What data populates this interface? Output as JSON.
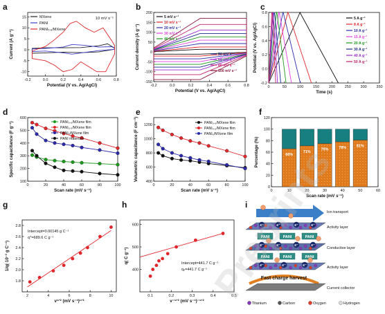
{
  "figure": {
    "watermark": "Preprints",
    "panels": {
      "a": "a",
      "b": "b",
      "c": "c",
      "d": "d",
      "e": "e",
      "f": "f",
      "g": "g",
      "h": "h",
      "i": "i"
    }
  },
  "chart_data": [
    {
      "panel": "a",
      "type": "line",
      "xlabel": "Potential (V vs. Ag/AgCl)",
      "ylabel": "Current (A g⁻¹)",
      "annotation": "10 mV s⁻¹",
      "xlim": [
        -0.2,
        0.8
      ],
      "ylim": [
        -12,
        17
      ],
      "xticks": [
        "-0.2",
        "0.0",
        "0.2",
        "0.4",
        "0.6",
        "0.8"
      ],
      "yticks": [
        "-10",
        "-5",
        "0",
        "5",
        "10",
        "15"
      ],
      "legend": [
        "MXene",
        "PANI",
        "PANI₅.₆/MXene"
      ],
      "colors": [
        "#222222",
        "#3a3acb",
        "#e0262a"
      ],
      "series": [
        {
          "name": "MXene",
          "color": "#222222",
          "upper": [
            [
              -0.15,
              0.6
            ],
            [
              0,
              0.9
            ],
            [
              0.2,
              0.9
            ],
            [
              0.4,
              1.0
            ],
            [
              0.6,
              1.8
            ],
            [
              0.7,
              2.7
            ],
            [
              0.78,
              0.8
            ]
          ],
          "lower": [
            [
              -0.15,
              -1.6
            ],
            [
              0,
              -1.4
            ],
            [
              0.2,
              -1.1
            ],
            [
              0.4,
              -1.3
            ],
            [
              0.6,
              -1.0
            ],
            [
              0.78,
              0.2
            ]
          ]
        },
        {
          "name": "PANI",
          "color": "#3a3acb",
          "upper": [
            [
              -0.15,
              0.4
            ],
            [
              0,
              0.6
            ],
            [
              0.2,
              1.2
            ],
            [
              0.3,
              2.4
            ],
            [
              0.45,
              2.0
            ],
            [
              0.6,
              1.2
            ],
            [
              0.75,
              1.4
            ],
            [
              0.78,
              0.6
            ]
          ],
          "lower": [
            [
              -0.15,
              -0.8
            ],
            [
              0,
              -0.6
            ],
            [
              0.2,
              -1.4
            ],
            [
              0.3,
              -2.0
            ],
            [
              0.45,
              -1.2
            ],
            [
              0.6,
              -0.4
            ],
            [
              0.78,
              0.2
            ]
          ]
        },
        {
          "name": "PANI₅.₆/MXene",
          "color": "#e0262a",
          "upper": [
            [
              -0.15,
              -0.5
            ],
            [
              0,
              1.5
            ],
            [
              0.1,
              4.5
            ],
            [
              0.2,
              8.0
            ],
            [
              0.28,
              12.0
            ],
            [
              0.35,
              13.0
            ],
            [
              0.45,
              10.0
            ],
            [
              0.55,
              8.0
            ],
            [
              0.65,
              10.0
            ],
            [
              0.75,
              4.0
            ],
            [
              0.78,
              2.0
            ]
          ],
          "lower": [
            [
              -0.15,
              -4.0
            ],
            [
              0,
              -5.0
            ],
            [
              0.1,
              -7.0
            ],
            [
              0.2,
              -10.0
            ],
            [
              0.3,
              -9.0
            ],
            [
              0.4,
              -5.5
            ],
            [
              0.5,
              -8.0
            ],
            [
              0.58,
              -10.0
            ],
            [
              0.68,
              -10.0
            ],
            [
              0.78,
              -2.0
            ]
          ]
        }
      ]
    },
    {
      "panel": "b",
      "type": "line",
      "xlabel": "Potential (V vs. Ag/AgCl)",
      "ylabel": "Current density (A g⁻¹)",
      "xlim": [
        -0.2,
        0.8
      ],
      "ylim": [
        -150,
        200
      ],
      "xticks": [
        "-0.2",
        "0.0",
        "0.2",
        "0.4",
        "0.6",
        "0.8"
      ],
      "yticks": [
        "-150",
        "-100",
        "-50",
        "0",
        "50",
        "100",
        "150",
        "200"
      ],
      "legend": [
        "5 mV s⁻¹",
        "10 mV s⁻¹",
        "20 mV s⁻¹",
        "30 mV s⁻¹",
        "40 mV s⁻¹",
        "50 mV s⁻¹",
        "60 mV s⁻¹",
        "80 mV s⁻¹",
        "100 mV s⁻¹"
      ],
      "colors": [
        "#111111",
        "#e0262a",
        "#2a2aa8",
        "#e040e0",
        "#1a9a1a",
        "#1a2a8a",
        "#9a2ad0",
        "#c0206a",
        "#8a1a3a"
      ],
      "scales": [
        0.08,
        0.15,
        0.25,
        0.35,
        0.45,
        0.55,
        0.65,
        0.82,
        1.0
      ]
    },
    {
      "panel": "c",
      "type": "line",
      "xlabel": "Time (s)",
      "ylabel": "Potential (V vs. Ag/AgCl)",
      "xlim": [
        0,
        350
      ],
      "ylim": [
        -0.2,
        0.8
      ],
      "xticks": [
        "0",
        "50",
        "100",
        "150",
        "200",
        "250",
        "300",
        "350"
      ],
      "yticks": [
        "-0.2",
        "0.0",
        "0.2",
        "0.4",
        "0.6",
        "0.8"
      ],
      "legend": [
        "5 A g⁻¹",
        "8 A g⁻¹",
        "10 A g⁻¹",
        "15 A g⁻¹",
        "20 A g⁻¹",
        "30 A g⁻¹",
        "40 A g⁻¹",
        "50 A g⁻¹"
      ],
      "colors": [
        "#111111",
        "#e0262a",
        "#2a2aa8",
        "#e040e0",
        "#1a9a1a",
        "#1a2a8a",
        "#9a2ad0",
        "#c0206a"
      ],
      "periods": [
        220,
        135,
        100,
        72,
        55,
        38,
        28,
        22
      ]
    },
    {
      "panel": "d",
      "type": "scatter",
      "xlabel": "Scan rate (mV s⁻¹)",
      "ylabel": "Specific capacitance (F g⁻¹)",
      "xlim": [
        0,
        100
      ],
      "ylim": [
        100,
        600
      ],
      "xticks": [
        "0",
        "20",
        "40",
        "60",
        "80",
        "100"
      ],
      "yticks": [
        "100",
        "200",
        "300",
        "400",
        "500",
        "600"
      ],
      "x": [
        5,
        10,
        20,
        30,
        40,
        50,
        60,
        80,
        100
      ],
      "series": [
        {
          "name": "PANI₅.₆/MXene film",
          "color": "#1a9a1a",
          "values": [
            305,
            290,
            270,
            262,
            255,
            250,
            245,
            238,
            230
          ]
        },
        {
          "name": "PANI₅.₅/MXene film",
          "color": "#e0262a",
          "values": [
            560,
            545,
            515,
            495,
            475,
            455,
            440,
            400,
            360
          ]
        },
        {
          "name": "PANI₆/MXene film",
          "color": "#2a2aa8",
          "values": [
            520,
            470,
            420,
            400,
            390,
            380,
            365,
            345,
            320
          ]
        },
        {
          "name": "PANI materials",
          "color": "#111111",
          "values": [
            340,
            300,
            240,
            210,
            185,
            180,
            175,
            160,
            150
          ]
        }
      ]
    },
    {
      "panel": "e",
      "type": "scatter",
      "xlabel": "Scan rate (mV s⁻¹)",
      "ylabel": "Volumetric capacitance (F cm⁻³)",
      "xlim": [
        0,
        100
      ],
      "ylim": [
        400,
        1300
      ],
      "xticks": [
        "0",
        "20",
        "40",
        "60",
        "80",
        "100"
      ],
      "yticks": [
        "400",
        "600",
        "800",
        "1000",
        "1200"
      ],
      "x": [
        5,
        10,
        20,
        30,
        40,
        50,
        60,
        80,
        100
      ],
      "series": [
        {
          "name": "PANI₅.₆/MXene film",
          "color": "#111111",
          "values": [
            800,
            760,
            720,
            700,
            690,
            670,
            650,
            620,
            590
          ]
        },
        {
          "name": "PANI₅.₅/MXene film",
          "color": "#e0262a",
          "values": [
            1160,
            1120,
            1060,
            1010,
            970,
            940,
            900,
            830,
            750
          ]
        },
        {
          "name": "PANI₆/MXene film",
          "color": "#2a2aa8",
          "values": [
            920,
            860,
            800,
            760,
            730,
            700,
            680,
            630,
            580
          ]
        }
      ]
    },
    {
      "panel": "f",
      "type": "bar",
      "xlabel": "Scan rate (mV s⁻¹)",
      "ylabel": "Percentage (%)",
      "xlim": [
        0,
        60
      ],
      "ylim": [
        0,
        120
      ],
      "xticks": [
        "0",
        "10",
        "20",
        "30",
        "40",
        "50",
        "60"
      ],
      "yticks": [
        "0",
        "20",
        "40",
        "60",
        "80",
        "100",
        "120"
      ],
      "categories": [
        10,
        20,
        30,
        40,
        50
      ],
      "series": [
        {
          "name": "capacitive",
          "color": "#e07a1a",
          "values": [
            66,
            71,
            75,
            78,
            81
          ]
        },
        {
          "name": "diffusion",
          "color": "#177f7f",
          "values": [
            34,
            29,
            25,
            22,
            19
          ]
        }
      ],
      "labels": [
        "66%",
        "71%",
        "75%",
        "78%",
        "81%"
      ]
    },
    {
      "panel": "g",
      "type": "scatter",
      "xlabel": "v¹ᐟ² (mV s⁻¹)¹ᐟ²",
      "ylabel": "1/q(·10⁻³ g C⁻¹)",
      "annotation1": "Intercept=0.00145 g C⁻¹",
      "annotation2": "qᵀ=689.6 C g⁻¹",
      "xlim": [
        1.5,
        10.5
      ],
      "ylim": [
        1.6,
        2.9
      ],
      "xticks": [
        "2",
        "4",
        "6",
        "8",
        "10"
      ],
      "yticks": [
        "1.8",
        "2.0",
        "2.2",
        "2.4",
        "2.6",
        "2.8"
      ],
      "x": [
        2.24,
        3.16,
        4.47,
        5.48,
        6.32,
        7.07,
        7.75,
        8.94,
        10.0
      ],
      "values": [
        1.78,
        1.86,
        1.98,
        2.08,
        2.2,
        2.3,
        2.4,
        2.6,
        2.77
      ],
      "color": "#e0262a"
    },
    {
      "panel": "h",
      "type": "scatter",
      "xlabel": "v⁻¹ᐟ² (mV s⁻¹)⁻¹ᐟ²",
      "ylabel": "q( C g⁻¹)",
      "annotation1": "Intercept=441.7 C g⁻¹",
      "annotation2": "qₒ=441.7 C g⁻¹",
      "xlim": [
        0.05,
        0.5
      ],
      "ylim": [
        300,
        620
      ],
      "xticks": [
        "0.1",
        "0.2",
        "0.3",
        "0.4",
        "0.5"
      ],
      "yticks": [
        "400",
        "500",
        "600"
      ],
      "x": [
        0.1,
        0.112,
        0.129,
        0.141,
        0.158,
        0.183,
        0.224,
        0.316,
        0.447
      ],
      "values": [
        370,
        400,
        418,
        438,
        448,
        470,
        500,
        530,
        560
      ],
      "color": "#e0262a"
    }
  ],
  "schematic": {
    "title": "Ion transport pathway",
    "layers": [
      "Activity layer",
      "Conductive layer",
      "Activity layer"
    ],
    "pani_label": "PANI",
    "electron": "e⁻",
    "harvest": "Fast charge harvest",
    "collector": "Current collector",
    "legend": [
      {
        "name": "Titanium",
        "color": "#8a3ab8"
      },
      {
        "name": "Carbon",
        "color": "#555555"
      },
      {
        "name": "Oxygen",
        "color": "#e0402a"
      },
      {
        "name": "Hydrogen",
        "color": "#dddddd"
      }
    ]
  }
}
